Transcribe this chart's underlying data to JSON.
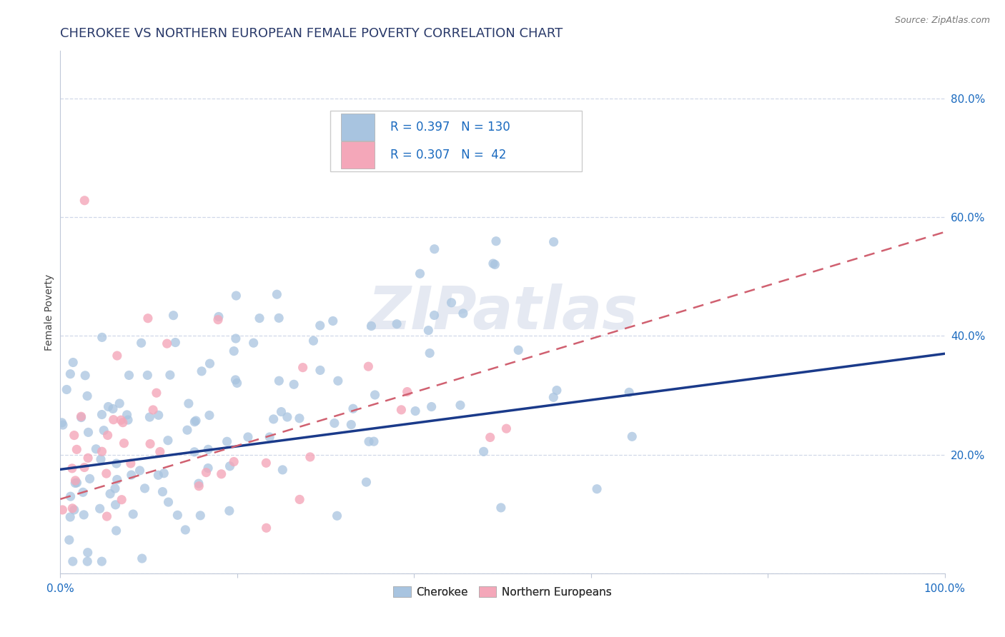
{
  "title": "CHEROKEE VS NORTHERN EUROPEAN FEMALE POVERTY CORRELATION CHART",
  "source": "Source: ZipAtlas.com",
  "ylabel": "Female Poverty",
  "xlim": [
    0.0,
    1.0
  ],
  "ylim": [
    0.0,
    0.88
  ],
  "cherokee_color": "#a8c4e0",
  "northern_color": "#f4a7b9",
  "cherokee_line_color": "#1a3a8a",
  "northern_line_color": "#d06070",
  "cherokee_R": 0.397,
  "cherokee_N": 130,
  "northern_R": 0.307,
  "northern_N": 42,
  "background_color": "#ffffff",
  "grid_color": "#d0d8e8",
  "watermark_text": "ZIPatlas",
  "legend_R_color": "#1a6abf",
  "title_color": "#2a3a6a",
  "cherokee_seed": 101,
  "northern_seed": 55,
  "tick_color": "#1a6abf"
}
